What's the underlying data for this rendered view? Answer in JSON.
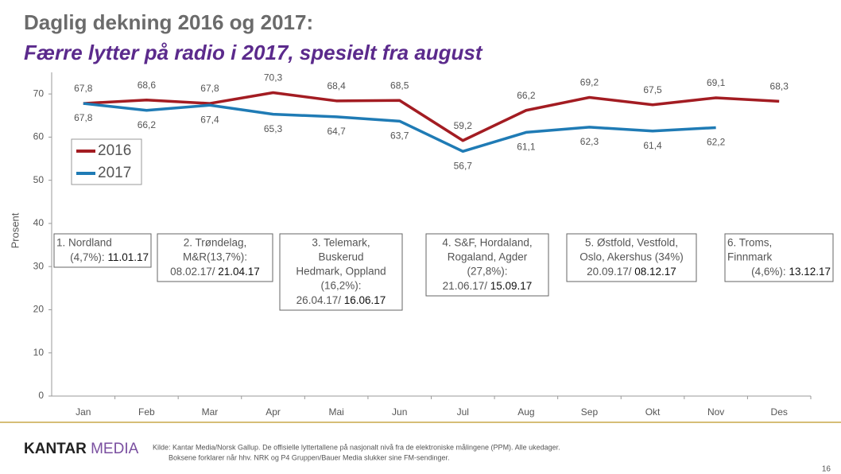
{
  "header": {
    "title": "Daglig dekning 2016 og 2017:",
    "subtitle": "Færre lytter på radio i 2017, spesielt fra august"
  },
  "chart_data": {
    "type": "line",
    "categories": [
      "Jan",
      "Feb",
      "Mar",
      "Apr",
      "Mai",
      "Jun",
      "Jul",
      "Aug",
      "Sep",
      "Okt",
      "Nov",
      "Des"
    ],
    "series": [
      {
        "name": "2016",
        "color": "#a31c22",
        "values": [
          67.8,
          68.6,
          67.8,
          70.3,
          68.4,
          68.5,
          59.2,
          66.2,
          69.2,
          67.5,
          69.1,
          68.3
        ],
        "value_labels": [
          "67,8",
          "68,6",
          "67,8",
          "70,3",
          "68,4",
          "68,5",
          "59,2",
          "66,2",
          "69,2",
          "67,5",
          "69,1",
          "68,3"
        ]
      },
      {
        "name": "2017",
        "color": "#1f7bb5",
        "values": [
          67.8,
          66.2,
          67.4,
          65.3,
          64.7,
          63.7,
          56.7,
          61.1,
          62.3,
          61.4,
          62.2,
          null
        ],
        "value_labels": [
          "67,8",
          "66,2",
          "67,4",
          "65,3",
          "64,7",
          "63,7",
          "56,7",
          "61,1",
          "62,3",
          "61,4",
          "62,2",
          null
        ]
      }
    ],
    "ylabel": "Prosent",
    "ylim": [
      0,
      75
    ],
    "yticks": [
      0,
      10,
      20,
      30,
      40,
      50,
      60,
      70
    ],
    "legend": "upper left",
    "annotations": [
      {
        "lines": [
          "1. Nordland"
        ],
        "last": "(4,7%):",
        "bold": "11.01.17"
      },
      {
        "lines": [
          "2. Trøndelag,",
          "M&R(13,7%):"
        ],
        "last": "08.02.17/",
        "bold": "21.04.17"
      },
      {
        "lines": [
          "3. Telemark,",
          "Buskerud",
          "Hedmark, Oppland",
          "(16,2%):"
        ],
        "last": "26.04.17/",
        "bold": "16.06.17"
      },
      {
        "lines": [
          "4. S&F, Hordaland,",
          "Rogaland, Agder",
          "(27,8%):"
        ],
        "last": "21.06.17/",
        "bold": "15.09.17"
      },
      {
        "lines": [
          "5. Østfold, Vestfold,",
          "Oslo, Akershus (34%)"
        ],
        "last": "20.09.17/",
        "bold": "08.12.17"
      },
      {
        "lines": [
          "6. Troms,",
          "Finnmark"
        ],
        "last": "(4,6%):",
        "bold": "13.12.17"
      }
    ]
  },
  "footer": {
    "logo": [
      "KANTAR",
      "MEDIA"
    ],
    "source": [
      "Kilde: Kantar Media/Norsk Gallup. De offisielle lyttertallene på nasjonalt nivå fra de elektroniske målingene (PPM). Alle ukedager.",
      "Boksene forklarer når hhv. NRK og P4 Gruppen/Bauer Media slukker sine FM-sendinger."
    ],
    "page": "16"
  }
}
